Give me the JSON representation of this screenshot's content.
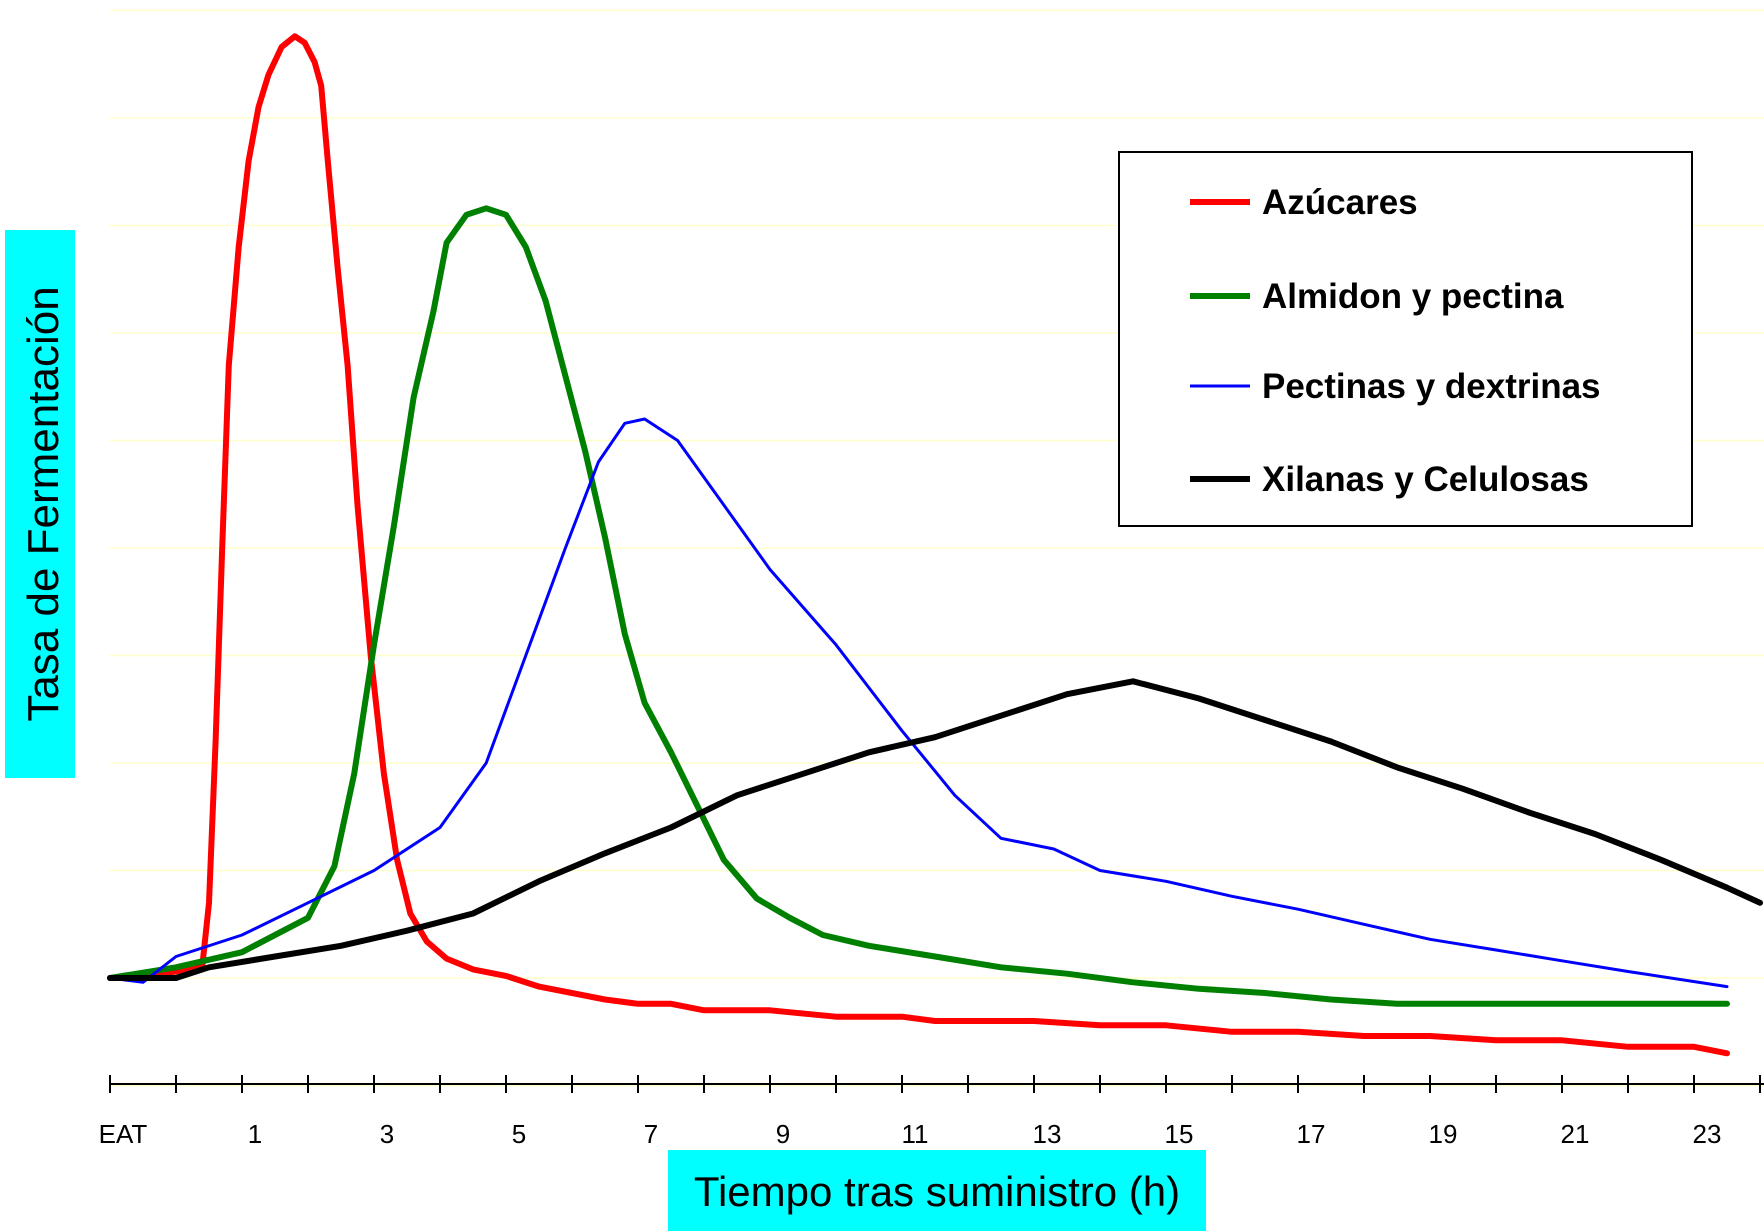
{
  "chart_data": {
    "type": "line",
    "title": "",
    "xlabel": "Tiempo tras suministro (h)",
    "ylabel": "Tasa de Fermentación",
    "xlim": [
      -0.25,
      24.25
    ],
    "ylim": [
      -0.5,
      4.5
    ],
    "grid": {
      "horizontal": true,
      "color": "#ffffcc"
    },
    "axis_title_background": "#00ffff",
    "x_tick_labels": [
      {
        "x": 0,
        "label": "EAT"
      },
      {
        "x": 2,
        "label": "1"
      },
      {
        "x": 4,
        "label": "3"
      },
      {
        "x": 6,
        "label": "5"
      },
      {
        "x": 8,
        "label": "7"
      },
      {
        "x": 10,
        "label": "9"
      },
      {
        "x": 12,
        "label": "11"
      },
      {
        "x": 14,
        "label": "13"
      },
      {
        "x": 16,
        "label": "15"
      },
      {
        "x": 18,
        "label": "17"
      },
      {
        "x": 20,
        "label": "19"
      },
      {
        "x": 22,
        "label": "21"
      },
      {
        "x": 24,
        "label": "23"
      }
    ],
    "legend_position": "top-right",
    "series": [
      {
        "name": "Azúcares",
        "color": "#ff0000",
        "stroke": "thick",
        "points": [
          [
            0,
            0
          ],
          [
            0.5,
            0.01
          ],
          [
            1,
            0.03
          ],
          [
            1.4,
            0.06
          ],
          [
            1.5,
            0.35
          ],
          [
            1.6,
            1.1
          ],
          [
            1.7,
            2.0
          ],
          [
            1.8,
            2.85
          ],
          [
            1.95,
            3.4
          ],
          [
            2.1,
            3.8
          ],
          [
            2.25,
            4.05
          ],
          [
            2.4,
            4.2
          ],
          [
            2.6,
            4.33
          ],
          [
            2.8,
            4.38
          ],
          [
            2.95,
            4.35
          ],
          [
            3.1,
            4.26
          ],
          [
            3.2,
            4.15
          ],
          [
            3.3,
            3.8
          ],
          [
            3.45,
            3.3
          ],
          [
            3.6,
            2.85
          ],
          [
            3.75,
            2.2
          ],
          [
            3.95,
            1.5
          ],
          [
            4.15,
            0.95
          ],
          [
            4.35,
            0.55
          ],
          [
            4.55,
            0.3
          ],
          [
            4.8,
            0.17
          ],
          [
            5.1,
            0.09
          ],
          [
            5.5,
            0.04
          ],
          [
            6,
            0.01
          ],
          [
            6.5,
            -0.04
          ],
          [
            7.5,
            -0.1
          ],
          [
            8.0,
            -0.12
          ],
          [
            8.5,
            -0.12
          ],
          [
            9.0,
            -0.15
          ],
          [
            10,
            -0.15
          ],
          [
            11,
            -0.18
          ],
          [
            12,
            -0.18
          ],
          [
            12.5,
            -0.2
          ],
          [
            13,
            -0.2
          ],
          [
            14,
            -0.2
          ],
          [
            15,
            -0.22
          ],
          [
            16,
            -0.22
          ],
          [
            17,
            -0.25
          ],
          [
            18,
            -0.25
          ],
          [
            19,
            -0.27
          ],
          [
            20,
            -0.27
          ],
          [
            21,
            -0.29
          ],
          [
            22,
            -0.29
          ],
          [
            23,
            -0.32
          ],
          [
            24,
            -0.32
          ],
          [
            24.5,
            -0.35
          ]
        ]
      },
      {
        "name": "Almidon y pectina",
        "color": "#008000",
        "stroke": "thick",
        "points": [
          [
            0,
            0
          ],
          [
            1,
            0.05
          ],
          [
            2,
            0.12
          ],
          [
            3,
            0.28
          ],
          [
            3.4,
            0.52
          ],
          [
            3.7,
            0.95
          ],
          [
            4,
            1.55
          ],
          [
            4.3,
            2.1
          ],
          [
            4.6,
            2.7
          ],
          [
            4.9,
            3.1
          ],
          [
            5.1,
            3.42
          ],
          [
            5.4,
            3.55
          ],
          [
            5.7,
            3.58
          ],
          [
            6.0,
            3.55
          ],
          [
            6.3,
            3.4
          ],
          [
            6.6,
            3.15
          ],
          [
            6.9,
            2.8
          ],
          [
            7.2,
            2.45
          ],
          [
            7.5,
            2.05
          ],
          [
            7.8,
            1.6
          ],
          [
            8.1,
            1.28
          ],
          [
            8.5,
            1.05
          ],
          [
            8.9,
            0.8
          ],
          [
            9.3,
            0.55
          ],
          [
            9.8,
            0.37
          ],
          [
            10.3,
            0.28
          ],
          [
            10.8,
            0.2
          ],
          [
            11.5,
            0.15
          ],
          [
            12.5,
            0.1
          ],
          [
            13.5,
            0.05
          ],
          [
            14.5,
            0.02
          ],
          [
            15.5,
            -0.02
          ],
          [
            16.5,
            -0.05
          ],
          [
            17.5,
            -0.07
          ],
          [
            18.5,
            -0.1
          ],
          [
            19.5,
            -0.12
          ],
          [
            20.5,
            -0.12
          ],
          [
            22,
            -0.12
          ],
          [
            23,
            -0.12
          ],
          [
            24.5,
            -0.12
          ]
        ]
      },
      {
        "name": "Pectinas y dextrinas",
        "color": "#0000ff",
        "stroke": "thin",
        "points": [
          [
            0,
            0
          ],
          [
            0.5,
            -0.02
          ],
          [
            1,
            0.1
          ],
          [
            2,
            0.2
          ],
          [
            3,
            0.35
          ],
          [
            4,
            0.5
          ],
          [
            5,
            0.7
          ],
          [
            5.7,
            1.0
          ],
          [
            6.3,
            1.5
          ],
          [
            6.9,
            2.0
          ],
          [
            7.4,
            2.4
          ],
          [
            7.8,
            2.58
          ],
          [
            8.1,
            2.6
          ],
          [
            8.6,
            2.5
          ],
          [
            9.3,
            2.2
          ],
          [
            10,
            1.9
          ],
          [
            11,
            1.55
          ],
          [
            12,
            1.15
          ],
          [
            12.8,
            0.85
          ],
          [
            13.5,
            0.65
          ],
          [
            14.3,
            0.6
          ],
          [
            15,
            0.5
          ],
          [
            16,
            0.45
          ],
          [
            17,
            0.38
          ],
          [
            18,
            0.32
          ],
          [
            19,
            0.25
          ],
          [
            20,
            0.18
          ],
          [
            21,
            0.13
          ],
          [
            22,
            0.08
          ],
          [
            23,
            0.03
          ],
          [
            24.5,
            -0.04
          ]
        ]
      },
      {
        "name": "Xilanas y Celulosas",
        "color": "#000000",
        "stroke": "thick",
        "points": [
          [
            0,
            0
          ],
          [
            1,
            0.0
          ],
          [
            1.5,
            0.05
          ],
          [
            2.5,
            0.1
          ],
          [
            3.5,
            0.15
          ],
          [
            4.5,
            0.22
          ],
          [
            5.5,
            0.3
          ],
          [
            6.5,
            0.45
          ],
          [
            7.5,
            0.58
          ],
          [
            8.5,
            0.7
          ],
          [
            9.5,
            0.85
          ],
          [
            10.5,
            0.95
          ],
          [
            11.5,
            1.05
          ],
          [
            12.5,
            1.12
          ],
          [
            13.5,
            1.22
          ],
          [
            14.5,
            1.32
          ],
          [
            15.5,
            1.38
          ],
          [
            16.5,
            1.3
          ],
          [
            17.5,
            1.2
          ],
          [
            18.5,
            1.1
          ],
          [
            19.5,
            0.98
          ],
          [
            20.5,
            0.88
          ],
          [
            21.5,
            0.77
          ],
          [
            22.5,
            0.67
          ],
          [
            23.5,
            0.55
          ],
          [
            24.5,
            0.42
          ],
          [
            25,
            0.35
          ]
        ]
      }
    ]
  }
}
